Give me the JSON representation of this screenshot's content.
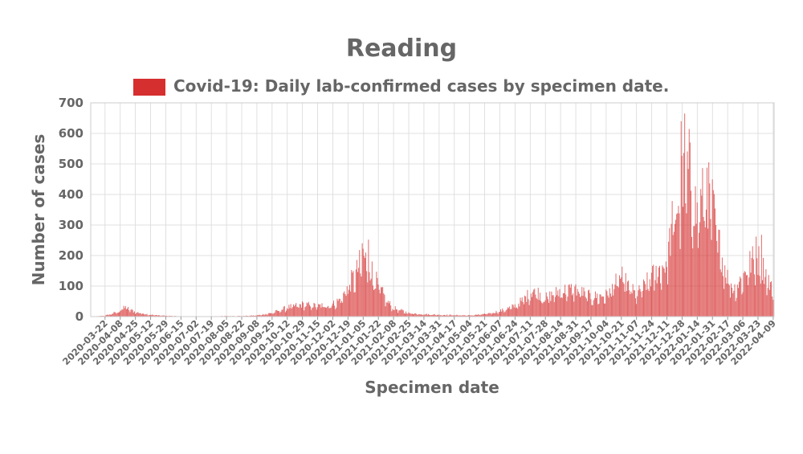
{
  "chart_data": {
    "type": "bar",
    "title": "Reading",
    "xlabel": "Specimen date",
    "ylabel": "Number of cases",
    "legend": {
      "label": "Covid-19: Daily lab-confirmed cases by specimen date.",
      "placement": "top-center"
    },
    "series_color": "#d62f2f",
    "ylim": [
      0,
      700
    ],
    "yticks": [
      0,
      100,
      200,
      300,
      400,
      500,
      600,
      700
    ],
    "grid": true,
    "x_start": "2020-03-06",
    "x_end": "2022-04-10",
    "x_tick_labels": [
      "2020-03-22",
      "2020-04-08",
      "2020-04-25",
      "2020-05-12",
      "2020-05-29",
      "2020-06-15",
      "2020-07-02",
      "2020-07-19",
      "2020-08-05",
      "2020-08-22",
      "2020-09-08",
      "2020-09-25",
      "2020-10-12",
      "2020-10-29",
      "2020-11-15",
      "2020-12-02",
      "2020-12-19",
      "2021-01-05",
      "2021-01-22",
      "2021-02-08",
      "2021-02-25",
      "2021-03-14",
      "2021-03-31",
      "2021-04-17",
      "2021-05-04",
      "2021-05-21",
      "2021-06-07",
      "2021-06-24",
      "2021-07-11",
      "2021-07-28",
      "2021-08-14",
      "2021-08-31",
      "2021-09-17",
      "2021-10-04",
      "2021-10-21",
      "2021-11-07",
      "2021-11-24",
      "2021-12-11",
      "2021-12-28",
      "2022-01-14",
      "2022-01-31",
      "2022-02-17",
      "2022-03-06",
      "2022-03-23",
      "2022-04-09"
    ],
    "daily_values_approx": [
      {
        "date": "2020-03-06",
        "value": 0
      },
      {
        "date": "2020-03-22",
        "value": 3
      },
      {
        "date": "2020-04-05",
        "value": 15
      },
      {
        "date": "2020-04-14",
        "value": 30
      },
      {
        "date": "2020-04-25",
        "value": 15
      },
      {
        "date": "2020-05-12",
        "value": 6
      },
      {
        "date": "2020-05-29",
        "value": 3
      },
      {
        "date": "2020-06-15",
        "value": 1
      },
      {
        "date": "2020-07-02",
        "value": 1
      },
      {
        "date": "2020-07-19",
        "value": 1
      },
      {
        "date": "2020-08-05",
        "value": 2
      },
      {
        "date": "2020-08-22",
        "value": 2
      },
      {
        "date": "2020-09-08",
        "value": 4
      },
      {
        "date": "2020-09-25",
        "value": 12
      },
      {
        "date": "2020-10-12",
        "value": 30
      },
      {
        "date": "2020-10-29",
        "value": 40
      },
      {
        "date": "2020-11-15",
        "value": 35
      },
      {
        "date": "2020-12-02",
        "value": 40
      },
      {
        "date": "2020-12-12",
        "value": 60
      },
      {
        "date": "2020-12-19",
        "value": 100
      },
      {
        "date": "2020-12-28",
        "value": 140
      },
      {
        "date": "2021-01-05",
        "value": 200
      },
      {
        "date": "2021-01-12",
        "value": 170
      },
      {
        "date": "2021-01-22",
        "value": 100
      },
      {
        "date": "2021-02-01",
        "value": 50
      },
      {
        "date": "2021-02-08",
        "value": 28
      },
      {
        "date": "2021-02-25",
        "value": 12
      },
      {
        "date": "2021-03-14",
        "value": 8
      },
      {
        "date": "2021-03-31",
        "value": 6
      },
      {
        "date": "2021-04-17",
        "value": 5
      },
      {
        "date": "2021-05-04",
        "value": 4
      },
      {
        "date": "2021-05-21",
        "value": 8
      },
      {
        "date": "2021-06-07",
        "value": 18
      },
      {
        "date": "2021-06-24",
        "value": 35
      },
      {
        "date": "2021-07-05",
        "value": 60
      },
      {
        "date": "2021-07-15",
        "value": 90
      },
      {
        "date": "2021-07-28",
        "value": 60
      },
      {
        "date": "2021-08-14",
        "value": 85
      },
      {
        "date": "2021-08-31",
        "value": 90
      },
      {
        "date": "2021-09-17",
        "value": 65
      },
      {
        "date": "2021-10-04",
        "value": 70
      },
      {
        "date": "2021-10-21",
        "value": 130
      },
      {
        "date": "2021-11-01",
        "value": 90
      },
      {
        "date": "2021-11-07",
        "value": 70
      },
      {
        "date": "2021-11-24",
        "value": 130
      },
      {
        "date": "2021-12-11",
        "value": 180
      },
      {
        "date": "2021-12-18",
        "value": 320
      },
      {
        "date": "2021-12-28",
        "value": 420
      },
      {
        "date": "2022-01-05",
        "value": 480
      },
      {
        "date": "2022-01-14",
        "value": 330
      },
      {
        "date": "2022-01-24",
        "value": 420
      },
      {
        "date": "2022-01-31",
        "value": 360
      },
      {
        "date": "2022-02-08",
        "value": 230
      },
      {
        "date": "2022-02-17",
        "value": 130
      },
      {
        "date": "2022-02-24",
        "value": 90
      },
      {
        "date": "2022-03-06",
        "value": 130
      },
      {
        "date": "2022-03-15",
        "value": 180
      },
      {
        "date": "2022-03-23",
        "value": 190
      },
      {
        "date": "2022-04-01",
        "value": 140
      },
      {
        "date": "2022-04-10",
        "value": 70
      }
    ],
    "notable_peaks": [
      {
        "date": "2020-04-12",
        "value": 35
      },
      {
        "date": "2021-01-11",
        "value": 252
      },
      {
        "date": "2021-01-04",
        "value": 240
      },
      {
        "date": "2021-12-27",
        "value": 640
      },
      {
        "date": "2021-12-31",
        "value": 665
      },
      {
        "date": "2022-01-25",
        "value": 488
      },
      {
        "date": "2022-03-21",
        "value": 262
      },
      {
        "date": "2022-03-27",
        "value": 268
      }
    ]
  }
}
